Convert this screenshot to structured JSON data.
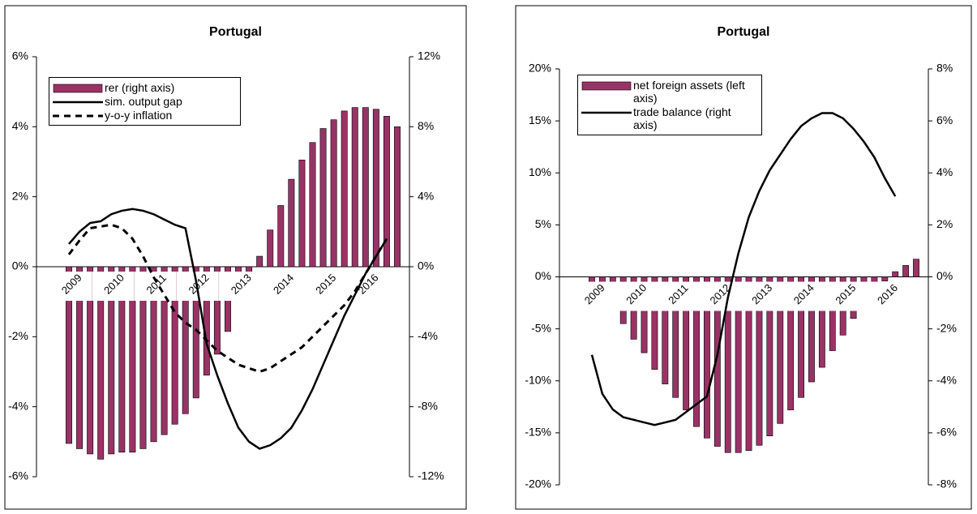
{
  "chart_data": [
    {
      "type": "combo",
      "title": "Portugal",
      "categories": [
        "2009",
        null,
        null,
        null,
        "2010",
        null,
        null,
        null,
        "2011",
        null,
        null,
        null,
        "2012",
        null,
        null,
        null,
        "2013",
        null,
        null,
        null,
        "2014",
        null,
        null,
        null,
        "2015",
        null,
        null,
        null,
        "2016",
        null,
        null,
        null
      ],
      "series": [
        {
          "name": "rer (right axis)",
          "type": "bar",
          "axis": "y2",
          "color": "#993366",
          "values": [
            -10.1,
            -10.4,
            -10.7,
            -11.0,
            -10.7,
            -10.6,
            -10.6,
            -10.4,
            -10.0,
            -9.6,
            -9.0,
            -8.4,
            -7.5,
            -6.2,
            -5.0,
            -3.7,
            -0.8,
            -0.8,
            0.6,
            2.1,
            3.5,
            5.0,
            6.1,
            7.1,
            7.9,
            8.4,
            8.9,
            9.1,
            9.1,
            9.0,
            8.6,
            8.0
          ]
        },
        {
          "name": "sim. output gap",
          "type": "line",
          "axis": "y",
          "color": "#000000",
          "dashed": false,
          "values": [
            0.65,
            1.0,
            1.25,
            1.3,
            1.5,
            1.6,
            1.65,
            1.6,
            1.5,
            1.35,
            1.2,
            1.1,
            -0.4,
            -2.2,
            -3.1,
            -3.9,
            -4.6,
            -5.0,
            -5.2,
            -5.1,
            -4.9,
            -4.6,
            -4.1,
            -3.5,
            -2.8,
            -2.1,
            -1.4,
            -0.8,
            -0.2,
            0.3,
            0.8,
            null
          ]
        },
        {
          "name": "y-o-y inflation",
          "type": "line",
          "axis": "y",
          "color": "#000000",
          "dashed": true,
          "values": [
            0.35,
            0.75,
            1.1,
            1.15,
            1.2,
            1.1,
            0.8,
            0.3,
            -0.3,
            -0.8,
            -1.3,
            -1.6,
            -1.8,
            -2.1,
            -2.4,
            -2.6,
            -2.8,
            -2.9,
            -3.0,
            -2.9,
            -2.7,
            -2.5,
            -2.3,
            -2.0,
            -1.7,
            -1.4,
            -1.1,
            -0.7,
            -0.2,
            0.3,
            0.8,
            null
          ]
        }
      ],
      "ylim": [
        -6,
        6
      ],
      "yticks": [
        {
          "value": -6,
          "label": "-6%"
        },
        {
          "value": -4,
          "label": "-4%"
        },
        {
          "value": -2,
          "label": "-2%"
        },
        {
          "value": 0,
          "label": "0%"
        },
        {
          "value": 2,
          "label": "2%"
        },
        {
          "value": 4,
          "label": "4%"
        },
        {
          "value": 6,
          "label": "6%"
        }
      ],
      "y2lim": [
        -12,
        12
      ],
      "y2ticks": [
        {
          "value": -12,
          "label": "-12%"
        },
        {
          "value": -8,
          "label": "-8%"
        },
        {
          "value": -4,
          "label": "-4%"
        },
        {
          "value": 0,
          "label": "0%"
        },
        {
          "value": 4,
          "label": "4%"
        },
        {
          "value": 8,
          "label": "8%"
        },
        {
          "value": 12,
          "label": "12%"
        }
      ],
      "legend": "upper left",
      "grid": false
    },
    {
      "type": "combo",
      "title": "Portugal",
      "categories": [
        "2009",
        null,
        null,
        null,
        "2010",
        null,
        null,
        null,
        "2011",
        null,
        null,
        null,
        "2012",
        null,
        null,
        null,
        "2013",
        null,
        null,
        null,
        "2014",
        null,
        null,
        null,
        "2015",
        null,
        null,
        null,
        "2016",
        null,
        null,
        null
      ],
      "series": [
        {
          "name": "net foreign assets (left axis)",
          "type": "bar",
          "axis": "y",
          "color": "#993366",
          "values": [
            -0.8,
            -1.6,
            -3.0,
            -4.5,
            -6.0,
            -7.3,
            -8.9,
            -10.3,
            -11.6,
            -12.8,
            -14.4,
            -15.5,
            -16.3,
            -16.9,
            -16.9,
            -16.7,
            -16.2,
            -15.3,
            -14.1,
            -12.8,
            -11.6,
            -10.1,
            -8.7,
            -7.1,
            -5.6,
            -4.0,
            -2.7,
            -1.3,
            -0.4,
            0.5,
            1.1,
            1.7
          ]
        },
        {
          "name": "trade balance (right axis)",
          "type": "line",
          "axis": "y2",
          "color": "#000000",
          "dashed": false,
          "values": [
            -3.0,
            -4.5,
            -5.1,
            -5.4,
            -5.5,
            -5.6,
            -5.7,
            -5.6,
            -5.5,
            -5.2,
            -4.9,
            -4.6,
            -3.0,
            -0.8,
            0.9,
            2.3,
            3.3,
            4.1,
            4.7,
            5.3,
            5.8,
            6.1,
            6.3,
            6.3,
            6.1,
            5.7,
            5.2,
            4.6,
            3.8,
            3.1,
            null,
            null
          ]
        }
      ],
      "ylim": [
        -20,
        20
      ],
      "yticks": [
        {
          "value": -20,
          "label": "-20%"
        },
        {
          "value": -15,
          "label": "-15%"
        },
        {
          "value": -10,
          "label": "-10%"
        },
        {
          "value": -5,
          "label": "-5%"
        },
        {
          "value": 0,
          "label": "0%"
        },
        {
          "value": 5,
          "label": "5%"
        },
        {
          "value": 10,
          "label": "10%"
        },
        {
          "value": 15,
          "label": "15%"
        },
        {
          "value": 20,
          "label": "20%"
        }
      ],
      "y2lim": [
        -8,
        8
      ],
      "y2ticks": [
        {
          "value": -8,
          "label": "-8%"
        },
        {
          "value": -6,
          "label": "-6%"
        },
        {
          "value": -4,
          "label": "-4%"
        },
        {
          "value": -2,
          "label": "-2%"
        },
        {
          "value": 0,
          "label": "0%"
        },
        {
          "value": 2,
          "label": "2%"
        },
        {
          "value": 4,
          "label": "4%"
        },
        {
          "value": 6,
          "label": "6%"
        },
        {
          "value": 8,
          "label": "8%"
        }
      ],
      "legend": "upper left",
      "grid": false
    }
  ]
}
